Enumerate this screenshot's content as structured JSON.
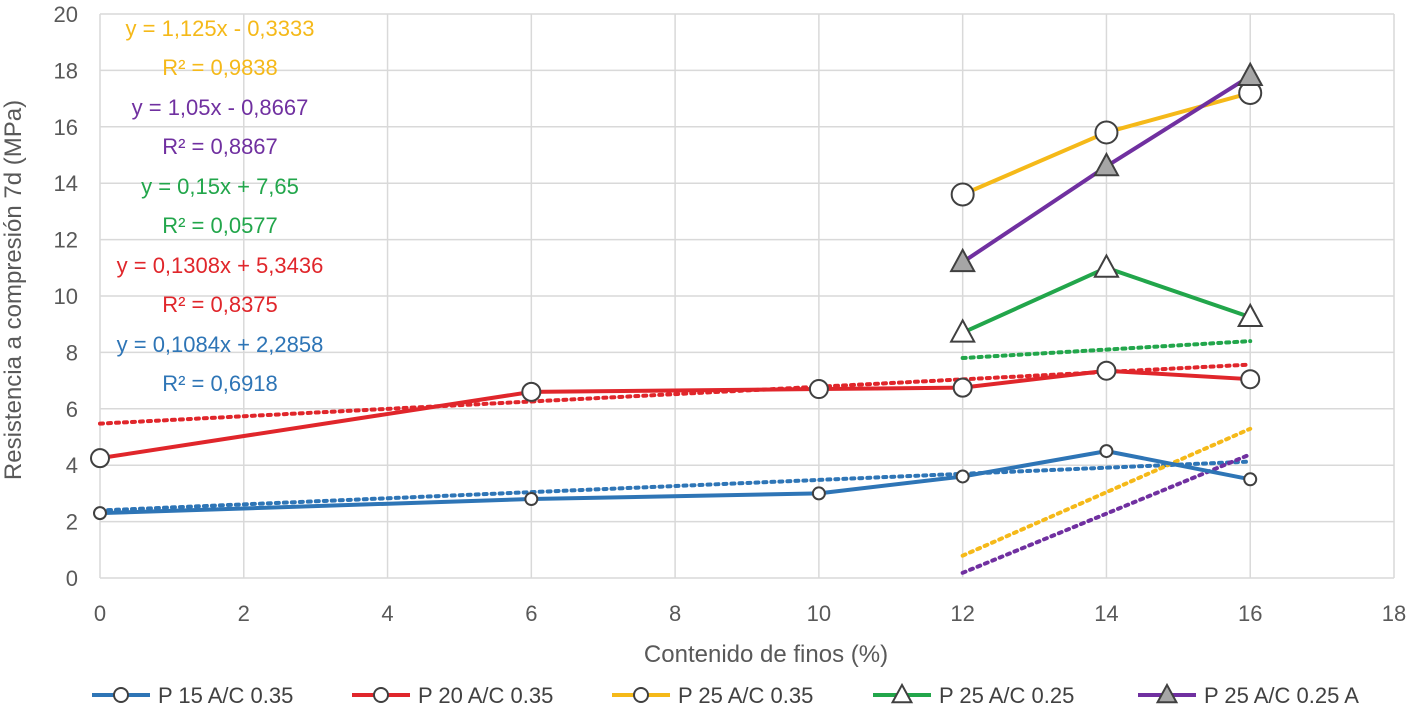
{
  "chart_data": {
    "type": "line",
    "xlabel": "Contenido de finos (%)",
    "ylabel": "Resistencia a compresión 7d (MPa)",
    "xlim": [
      0,
      18
    ],
    "ylim": [
      0,
      20
    ],
    "xticks": [
      "0",
      "2",
      "4",
      "6",
      "8",
      "10",
      "12",
      "14",
      "16",
      "18"
    ],
    "yticks": [
      "0",
      "2",
      "4",
      "6",
      "8",
      "10",
      "12",
      "14",
      "16",
      "18",
      "20"
    ],
    "grid": true,
    "legend_position": "bottom",
    "series": [
      {
        "name": "P 15 A/C 0.35",
        "color": "#2e75b6",
        "marker": "circle",
        "x": [
          0,
          6,
          10,
          12,
          14,
          16
        ],
        "y": [
          2.3,
          2.8,
          3.0,
          3.6,
          4.5,
          3.5
        ],
        "trendline": {
          "slope": 0.1084,
          "intercept": 2.2858,
          "equation": "y = 0,1084x + 2,2858",
          "r2": "R² = 0,6918"
        }
      },
      {
        "name": "P 20 A/C 0.35",
        "color": "#e0262b",
        "marker": "circle",
        "x": [
          0,
          6,
          10,
          12,
          14,
          16
        ],
        "y": [
          4.25,
          6.6,
          6.7,
          6.75,
          7.35,
          7.05
        ],
        "trendline": {
          "slope": 0.1308,
          "intercept": 5.3436,
          "equation": "y = 0,1308x + 5,3436",
          "r2": "R² = 0,8375"
        }
      },
      {
        "name": "P 25 A/C 0.35",
        "color": "#f5b919",
        "marker": "circle",
        "x": [
          12,
          14,
          16
        ],
        "y": [
          13.6,
          15.8,
          17.2
        ],
        "trendline": {
          "slope": 1.125,
          "intercept": -0.3333,
          "equation": "y = 1,125x - 0,3333",
          "r2": "R² = 0,9838"
        }
      },
      {
        "name": "P 25 A/C 0.25",
        "color": "#22a64b",
        "marker": "triangle-open",
        "x": [
          12,
          14,
          16
        ],
        "y": [
          8.7,
          11.0,
          9.25
        ],
        "trendline": {
          "slope": 0.15,
          "intercept": 7.65,
          "equation": "y = 0,15x + 7,65",
          "r2": "R² = 0,0577"
        }
      },
      {
        "name": "P 25 A/C 0.25 A",
        "color": "#7030a0",
        "marker": "triangle-filled",
        "x": [
          12,
          14,
          16
        ],
        "y": [
          11.2,
          14.6,
          17.8
        ],
        "trendline": {
          "slope": 1.05,
          "intercept": -0.8667,
          "equation": "y = 1,05x - 0,8667",
          "r2": "R² = 0,8867"
        }
      }
    ],
    "equation_label_order": [
      2,
      4,
      3,
      1,
      0
    ]
  }
}
